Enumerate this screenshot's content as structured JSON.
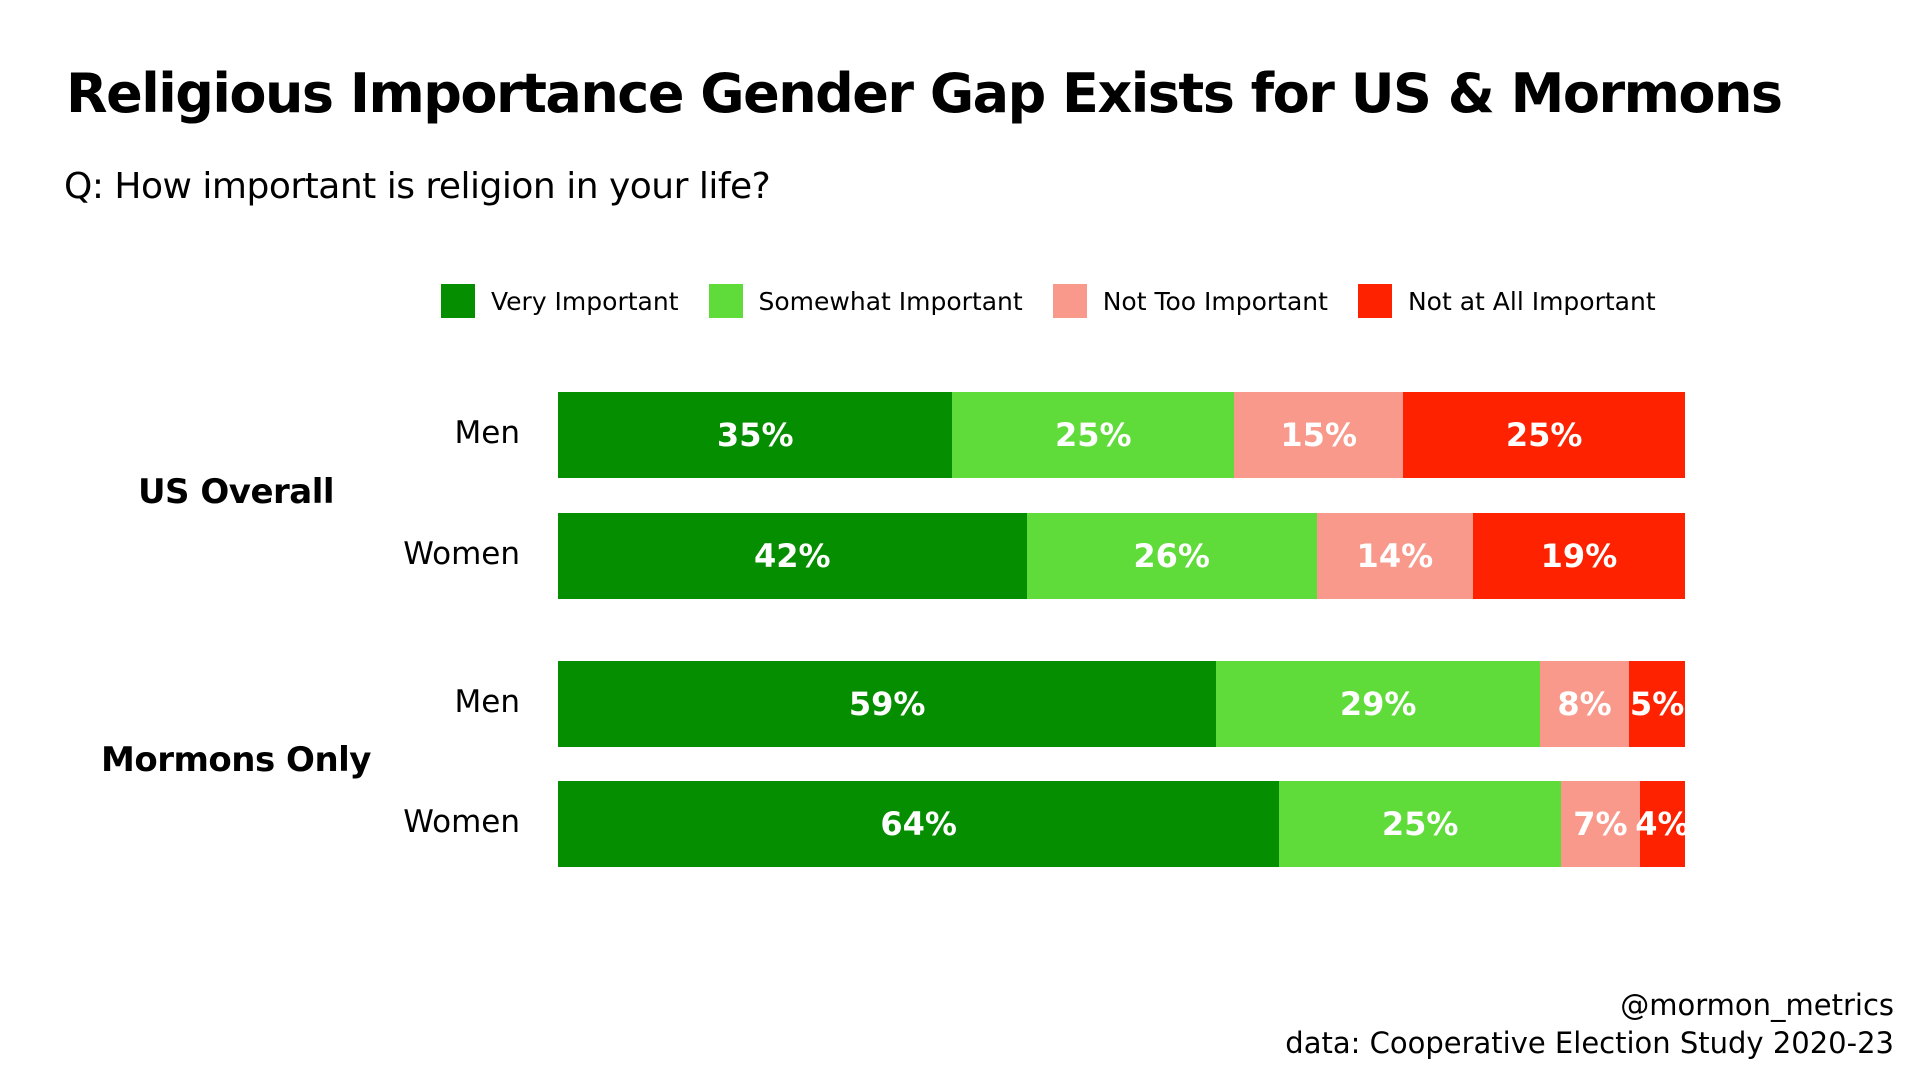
{
  "title": "Religious Importance Gender Gap Exists for US & Mormons",
  "subtitle": "Q: How important is religion in your life?",
  "footer": {
    "handle": "@mormon_metrics",
    "source": "data: Cooperative Election Study 2020-23"
  },
  "chart_data": {
    "type": "bar",
    "orientation": "horizontal-stacked-100",
    "legend": [
      {
        "label": "Very Important",
        "color": "#058f00"
      },
      {
        "label": "Somewhat Important",
        "color": "#5fdb3a"
      },
      {
        "label": "Not Too Important",
        "color": "#f8998c"
      },
      {
        "label": "Not at All Important",
        "color": "#ff2200"
      }
    ],
    "groups": [
      {
        "label": "US Overall",
        "rows": [
          {
            "label": "Men",
            "values": [
              35,
              25,
              15,
              25
            ]
          },
          {
            "label": "Women",
            "values": [
              42,
              26,
              14,
              19
            ]
          }
        ]
      },
      {
        "label": "Mormons Only",
        "rows": [
          {
            "label": "Men",
            "values": [
              59,
              29,
              8,
              5
            ]
          },
          {
            "label": "Women",
            "values": [
              64,
              25,
              7,
              4
            ]
          }
        ]
      }
    ],
    "legend_position": "top"
  }
}
